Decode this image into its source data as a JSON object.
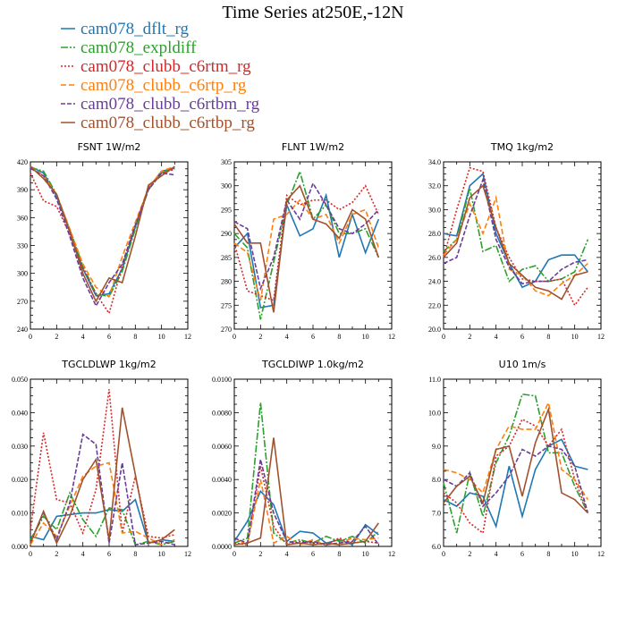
{
  "title": "Time Series at250E,-12N",
  "legend": [
    {
      "name": "cam078_dflt_rg",
      "color": "#1f77b4",
      "dash": "14 0"
    },
    {
      "name": "cam078_expldiff",
      "color": "#2ca02c",
      "dash": "8 2 2 2"
    },
    {
      "name": "cam078_clubb_c6rtm_rg",
      "color": "#d62728",
      "dash": "2 2"
    },
    {
      "name": "cam078_clubb_c6rtp_rg",
      "color": "#ff7f0e",
      "dash": "6 3"
    },
    {
      "name": "cam078_clubb_c6rtbm_rg",
      "color": "#6a3d9a",
      "dash": "5 2"
    },
    {
      "name": "cam078_clubb_c6rtbp_rg",
      "color": "#a0522d",
      "dash": "14 0"
    }
  ],
  "chart_data": [
    {
      "type": "line",
      "title": "FSNT   1W/m2",
      "x": [
        0,
        1,
        2,
        3,
        4,
        5,
        6,
        7,
        8,
        9,
        10,
        11
      ],
      "xlim": [
        0,
        12
      ],
      "xticks": [
        "0",
        "2",
        "4",
        "6",
        "8",
        "10",
        "12"
      ],
      "ylim": [
        240,
        420
      ],
      "yticks": [
        "240",
        "270",
        "300",
        "330",
        "360",
        "390",
        "420"
      ],
      "series": [
        {
          "name": "cam078_dflt_rg",
          "values": [
            415,
            408,
            383,
            345,
            305,
            276,
            278,
            305,
            350,
            392,
            410,
            413
          ]
        },
        {
          "name": "cam078_expldiff",
          "values": [
            414,
            410,
            385,
            347,
            308,
            278,
            275,
            302,
            348,
            390,
            408,
            414
          ]
        },
        {
          "name": "cam078_clubb_c6rtm_rg",
          "values": [
            408,
            378,
            372,
            342,
            305,
            278,
            257,
            308,
            352,
            392,
            408,
            412
          ]
        },
        {
          "name": "cam078_clubb_c6rtp_rg",
          "values": [
            415,
            405,
            385,
            348,
            310,
            285,
            275,
            318,
            355,
            392,
            410,
            415
          ]
        },
        {
          "name": "cam078_clubb_c6rtbm_rg",
          "values": [
            413,
            405,
            380,
            340,
            295,
            265,
            290,
            310,
            352,
            390,
            408,
            406
          ]
        },
        {
          "name": "cam078_clubb_c6rtbp_rg",
          "values": [
            415,
            402,
            385,
            345,
            300,
            270,
            295,
            290,
            340,
            395,
            405,
            415
          ]
        }
      ]
    },
    {
      "type": "line",
      "title": "FLNT   1W/m2",
      "x": [
        0,
        1,
        2,
        3,
        4,
        5,
        6,
        7,
        8,
        9,
        10,
        11
      ],
      "xlim": [
        0,
        12
      ],
      "xticks": [
        "0",
        "2",
        "4",
        "6",
        "8",
        "10",
        "12"
      ],
      "ylim": [
        270,
        305
      ],
      "yticks": [
        "270",
        "275",
        "280",
        "285",
        "290",
        "295",
        "300",
        "305"
      ],
      "series": [
        {
          "name": "cam078_dflt_rg",
          "values": [
            287,
            290,
            274.5,
            275,
            296,
            289.5,
            291,
            298,
            285,
            294,
            286,
            293
          ]
        },
        {
          "name": "cam078_expldiff",
          "values": [
            290,
            287,
            272,
            284,
            296,
            303,
            293,
            296,
            290,
            290,
            291,
            285
          ]
        },
        {
          "name": "cam078_clubb_c6rtm_rg",
          "values": [
            288,
            278,
            277,
            276,
            298,
            296,
            297,
            297,
            295,
            296.5,
            300,
            294
          ]
        },
        {
          "name": "cam078_clubb_c6rtp_rg",
          "values": [
            288,
            286,
            276,
            293,
            294,
            297,
            293,
            294,
            288,
            294,
            295,
            287
          ]
        },
        {
          "name": "cam078_clubb_c6rtbm_rg",
          "values": [
            292.5,
            291,
            278.5,
            285,
            297,
            293,
            300.5,
            296,
            291,
            290,
            292,
            295
          ]
        },
        {
          "name": "cam078_clubb_c6rtbp_rg",
          "values": [
            292,
            288,
            288,
            273.5,
            297,
            300,
            293,
            292,
            289,
            295,
            293,
            285
          ]
        }
      ]
    },
    {
      "type": "line",
      "title": "TMQ   1kg/m2",
      "x": [
        0,
        1,
        2,
        3,
        4,
        5,
        6,
        7,
        8,
        9,
        10,
        11
      ],
      "xlim": [
        0,
        12
      ],
      "xticks": [
        "0",
        "2",
        "4",
        "6",
        "8",
        "10",
        "12"
      ],
      "ylim": [
        20.0,
        34.0
      ],
      "yticks": [
        "20.0",
        "22.0",
        "24.0",
        "26.0",
        "28.0",
        "30.0",
        "32.0",
        "34.0"
      ],
      "series": [
        {
          "name": "cam078_dflt_rg",
          "values": [
            28,
            27.8,
            32,
            33,
            28,
            25.5,
            23.5,
            24,
            25.8,
            26.2,
            26.2,
            24.8
          ]
        },
        {
          "name": "cam078_expldiff",
          "values": [
            26.5,
            27.5,
            31.8,
            26.5,
            27,
            24,
            25,
            25.3,
            24,
            24.2,
            24.8,
            27.5
          ]
        },
        {
          "name": "cam078_clubb_c6rtm_rg",
          "values": [
            26,
            30,
            33.5,
            33.2,
            28.5,
            26,
            24.2,
            24,
            24,
            24.2,
            22,
            23.5
          ]
        },
        {
          "name": "cam078_clubb_c6rtp_rg",
          "values": [
            26.2,
            27.5,
            30.5,
            28,
            31,
            25,
            24.5,
            23.2,
            22.8,
            23.8,
            24.5,
            25.5
          ]
        },
        {
          "name": "cam078_clubb_c6rtbm_rg",
          "values": [
            25.5,
            26,
            29.5,
            32.5,
            27.5,
            25.2,
            23.8,
            24,
            24,
            25,
            25.6,
            25.8
          ]
        },
        {
          "name": "cam078_clubb_c6rtbp_rg",
          "values": [
            26,
            27.2,
            31,
            32,
            28.5,
            25.5,
            24.5,
            23.5,
            23.2,
            22.5,
            24.5,
            24.8
          ]
        }
      ]
    },
    {
      "type": "line",
      "title": "TGCLDLWP   1kg/m2",
      "x": [
        0,
        1,
        2,
        3,
        4,
        5,
        6,
        7,
        8,
        9,
        10,
        11
      ],
      "xlim": [
        0,
        12
      ],
      "xticks": [
        "0",
        "2",
        "4",
        "6",
        "8",
        "10",
        "12"
      ],
      "ylim": [
        0.0,
        0.05
      ],
      "yticks": [
        "0.000",
        "0.010",
        "0.020",
        "0.030",
        "0.040",
        "0.050"
      ],
      "series": [
        {
          "name": "cam078_dflt_rg",
          "values": [
            0.003,
            0.002,
            0.009,
            0.0095,
            0.01,
            0.01,
            0.011,
            0.0105,
            0.014,
            0.001,
            0.002,
            0.0015
          ]
        },
        {
          "name": "cam078_expldiff",
          "values": [
            0.002,
            0.009,
            0.005,
            0.016,
            0.008,
            0.003,
            0.0115,
            0.011,
            0.0005,
            0.0015,
            0.0005,
            0.0015
          ]
        },
        {
          "name": "cam078_clubb_c6rtm_rg",
          "values": [
            0.005,
            0.034,
            0.014,
            0.013,
            0.004,
            0.017,
            0.047,
            0.004,
            0.021,
            0.003,
            0.0025,
            0.0035
          ]
        },
        {
          "name": "cam078_clubb_c6rtp_rg",
          "values": [
            0.0005,
            0.007,
            0.003,
            0.012,
            0.021,
            0.024,
            0.025,
            0.004,
            0.0045,
            0.0025,
            0.0005,
            0.002
          ]
        },
        {
          "name": "cam078_clubb_c6rtbm_rg",
          "values": [
            0.001,
            0.01,
            0.002,
            0.013,
            0.0335,
            0.0305,
            0.001,
            0.025,
            0.0005,
            0.001,
            0.0015,
            0.0005
          ]
        },
        {
          "name": "cam078_clubb_c6rtbp_rg",
          "values": [
            0.001,
            0.0105,
            0.001,
            0.009,
            0.02,
            0.026,
            0.002,
            0.0415,
            0.0215,
            0.001,
            0.002,
            0.005
          ]
        }
      ]
    },
    {
      "type": "line",
      "title": "TGCLDIWP   1.0kg/m2",
      "x": [
        0,
        1,
        2,
        3,
        4,
        5,
        6,
        7,
        8,
        9,
        10,
        11
      ],
      "xlim": [
        0,
        12
      ],
      "xticks": [
        "0",
        "2",
        "4",
        "6",
        "8",
        "10",
        "12"
      ],
      "ylim": [
        0.0,
        0.01
      ],
      "yticks": [
        "0.0000",
        "0.0020",
        "0.0040",
        "0.0060",
        "0.0080",
        "0.0100"
      ],
      "series": [
        {
          "name": "cam078_dflt_rg",
          "values": [
            0.0003,
            0.0015,
            0.0033,
            0.0025,
            0.0003,
            0.0009,
            0.0008,
            0.0002,
            0.0004,
            0.0001,
            0.0013,
            0.0007
          ]
        },
        {
          "name": "cam078_expldiff",
          "values": [
            0.0002,
            0.0005,
            0.0086,
            0.0008,
            0.0002,
            0.0004,
            0.0002,
            0.0006,
            0.0003,
            0.0006,
            0.0002,
            0.0009
          ]
        },
        {
          "name": "cam078_clubb_c6rtm_rg",
          "values": [
            0.0002,
            0.0001,
            0.0048,
            0.0012,
            0.0001,
            0.0003,
            0.0002,
            0.0001,
            0.0005,
            0.0002,
            0.0003,
            0.0002
          ]
        },
        {
          "name": "cam078_clubb_c6rtp_rg",
          "values": [
            0.0005,
            0.0001,
            0.004,
            0.0002,
            0.0006,
            0.0001,
            0.0004,
            0.0001,
            0.0002,
            0.0005,
            0.0004,
            0.0005
          ]
        },
        {
          "name": "cam078_clubb_c6rtbm_rg",
          "values": [
            0.0005,
            0.0002,
            0.0052,
            0.002,
            0.0003,
            0.0002,
            0.0003,
            0.0001,
            0.0002,
            0.0003,
            0.0012,
            0.0001
          ]
        },
        {
          "name": "cam078_clubb_c6rtbp_rg",
          "values": [
            0.0001,
            0.0002,
            0.0005,
            0.0065,
            0.0001,
            0.0002,
            0.0001,
            0.0002,
            0.0001,
            0.0002,
            0.0003,
            0.0014
          ]
        }
      ]
    },
    {
      "type": "line",
      "title": "U10   1m/s",
      "x": [
        0,
        1,
        2,
        3,
        4,
        5,
        6,
        7,
        8,
        9,
        10,
        11
      ],
      "xlim": [
        0,
        12
      ],
      "xticks": [
        "0",
        "2",
        "4",
        "6",
        "8",
        "10",
        "12"
      ],
      "ylim": [
        6.0,
        11.0
      ],
      "yticks": [
        "6.0",
        "7.0",
        "8.0",
        "9.0",
        "10.0",
        "11.0"
      ],
      "series": [
        {
          "name": "cam078_dflt_rg",
          "values": [
            7.4,
            7.2,
            7.6,
            7.5,
            6.6,
            8.4,
            6.9,
            8.3,
            9.0,
            9.2,
            8.4,
            8.3
          ]
        },
        {
          "name": "cam078_expldiff",
          "values": [
            7.9,
            6.4,
            8.2,
            6.9,
            8.5,
            9.3,
            10.55,
            10.5,
            8.8,
            8.8,
            7.8,
            7.0
          ]
        },
        {
          "name": "cam078_clubb_c6rtm_rg",
          "values": [
            7.6,
            7.3,
            6.7,
            6.4,
            8.7,
            9.0,
            9.8,
            9.6,
            9.0,
            9.5,
            8.0,
            7.0
          ]
        },
        {
          "name": "cam078_clubb_c6rtp_rg",
          "values": [
            8.3,
            8.2,
            8.0,
            7.6,
            8.9,
            9.6,
            9.5,
            9.5,
            10.3,
            8.3,
            8.0,
            7.4
          ]
        },
        {
          "name": "cam078_clubb_c6rtbm_rg",
          "values": [
            8.0,
            7.8,
            8.2,
            7.2,
            7.6,
            8.1,
            8.9,
            8.7,
            9.0,
            8.9,
            8.4,
            7.0
          ]
        },
        {
          "name": "cam078_clubb_c6rtbp_rg",
          "values": [
            7.3,
            7.8,
            8.1,
            7.3,
            8.9,
            9.0,
            7.5,
            9.1,
            10.1,
            7.6,
            7.4,
            7.0
          ]
        }
      ]
    }
  ]
}
